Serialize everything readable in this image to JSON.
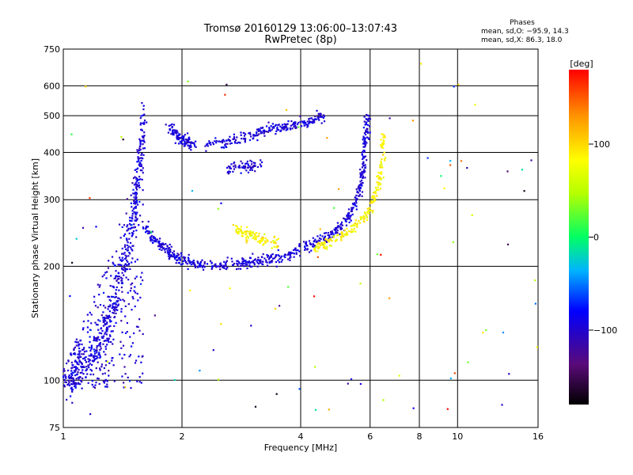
{
  "chart_data": {
    "type": "scatter",
    "title": "Tromsø 20160129 13:06:00–13:07:43",
    "subtitle": "RwPretec (8p)",
    "xlabel": "Frequency [MHz]",
    "ylabel": "Stationary phase Virtual Height [km]",
    "x_scale": "log",
    "y_scale": "log",
    "xlim": [
      1,
      16
    ],
    "ylim": [
      75,
      750
    ],
    "grid": true,
    "x_ticks": [
      1,
      2,
      4,
      6,
      8,
      10,
      16
    ],
    "x_tick_labels": [
      "1",
      "2",
      "4",
      "6",
      "8",
      "10",
      "16"
    ],
    "y_ticks": [
      75,
      100,
      200,
      300,
      400,
      500,
      600,
      750
    ],
    "y_tick_labels": [
      "75",
      "100",
      "200",
      "300",
      "400",
      "500",
      "600",
      "750"
    ],
    "stats": {
      "heading": "Phases",
      "line_o": "mean, sd,O: −95.9, 14.3",
      "line_x": "mean, sd,X:  86.3, 18.0"
    },
    "colorbar": {
      "label": "[deg]",
      "range": [
        -180,
        180
      ],
      "ticks": [
        100,
        0,
        -100
      ],
      "tick_labels": [
        "100",
        "0",
        "−100"
      ]
    },
    "series": [
      {
        "mode": "O",
        "phase_mean": -95.9,
        "phase_sd": 14.3,
        "note": "broad traces: 1.0–1.6 MHz near 100–500 km; 1.6–5.9 MHz near 200–300 km rising to 500 km at 6 MHz"
      },
      {
        "mode": "X",
        "phase_mean": 86.3,
        "phase_sd": 18.0,
        "note": "traces: 2.7–3.5 MHz near 230–250 km; 4.3–6.5 MHz rising from 220 to 450 km"
      }
    ],
    "traces": [
      {
        "mode": "O",
        "points": [
          [
            1.03,
            98
          ],
          [
            1.06,
            105
          ],
          [
            1.1,
            108
          ],
          [
            1.15,
            112
          ],
          [
            1.2,
            115
          ],
          [
            1.25,
            125
          ],
          [
            1.3,
            140
          ],
          [
            1.35,
            160
          ],
          [
            1.4,
            190
          ],
          [
            1.45,
            220
          ],
          [
            1.5,
            260
          ],
          [
            1.52,
            300
          ],
          [
            1.55,
            350
          ],
          [
            1.58,
            420
          ],
          [
            1.6,
            500
          ]
        ]
      },
      {
        "mode": "O",
        "points": [
          [
            1.6,
            260
          ],
          [
            1.7,
            235
          ],
          [
            1.8,
            225
          ],
          [
            1.9,
            215
          ],
          [
            2.0,
            208
          ],
          [
            2.2,
            203
          ],
          [
            2.5,
            202
          ],
          [
            2.8,
            203
          ],
          [
            3.0,
            205
          ],
          [
            3.3,
            208
          ],
          [
            3.6,
            213
          ],
          [
            4.0,
            222
          ],
          [
            4.4,
            232
          ],
          [
            4.8,
            245
          ],
          [
            5.2,
            262
          ],
          [
            5.5,
            290
          ],
          [
            5.7,
            330
          ],
          [
            5.8,
            380
          ],
          [
            5.85,
            440
          ],
          [
            5.9,
            500
          ]
        ]
      },
      {
        "mode": "O",
        "points": [
          [
            1.85,
            470
          ],
          [
            1.95,
            440
          ],
          [
            2.05,
            425
          ],
          [
            2.15,
            420
          ]
        ]
      },
      {
        "mode": "O",
        "points": [
          [
            2.3,
            420
          ],
          [
            2.6,
            430
          ],
          [
            2.9,
            440
          ],
          [
            3.2,
            455
          ],
          [
            3.5,
            465
          ],
          [
            3.8,
            470
          ],
          [
            4.2,
            485
          ],
          [
            4.6,
            500
          ]
        ]
      },
      {
        "mode": "O",
        "points": [
          [
            2.6,
            365
          ],
          [
            2.9,
            367
          ],
          [
            3.2,
            370
          ]
        ]
      },
      {
        "mode": "X",
        "points": [
          [
            2.7,
            250
          ],
          [
            2.85,
            245
          ],
          [
            3.0,
            240
          ],
          [
            3.2,
            235
          ],
          [
            3.5,
            232
          ]
        ]
      },
      {
        "mode": "X",
        "points": [
          [
            4.3,
            222
          ],
          [
            4.6,
            228
          ],
          [
            5.0,
            238
          ],
          [
            5.4,
            252
          ],
          [
            5.8,
            270
          ],
          [
            6.1,
            295
          ],
          [
            6.3,
            330
          ],
          [
            6.45,
            380
          ],
          [
            6.5,
            450
          ]
        ]
      }
    ]
  }
}
